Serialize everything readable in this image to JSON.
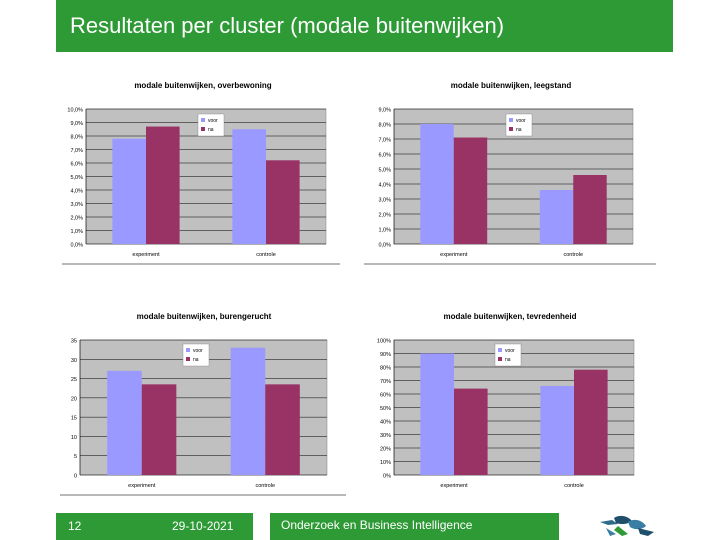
{
  "slide": {
    "title": "Resultaten per cluster (modale buitenwijken)",
    "page_number": "12",
    "date": "29-10-2021",
    "organization": "Onderzoek en Business Intelligence"
  },
  "colors": {
    "voor": "#9999ff",
    "na": "#993366",
    "plot_bg": "#c0c0c0",
    "brand": "#2e9a36"
  },
  "chart_data": [
    {
      "type": "bar",
      "title": "modale buitenwijken, overbewoning",
      "categories": [
        "experiment",
        "controle"
      ],
      "series": [
        {
          "name": "voor",
          "values": [
            7.8,
            8.5
          ]
        },
        {
          "name": "na",
          "values": [
            8.7,
            6.2
          ]
        }
      ],
      "ylim": [
        0,
        10
      ],
      "ticks": [
        "0,0%",
        "1,0%",
        "2,0%",
        "3,0%",
        "4,0%",
        "5,0%",
        "6,0%",
        "7,0%",
        "8,0%",
        "9,0%",
        "10,0%"
      ],
      "legend": "top-center"
    },
    {
      "type": "bar",
      "title": "modale buitenwijken, leegstand",
      "categories": [
        "experiment",
        "controle"
      ],
      "series": [
        {
          "name": "voor",
          "values": [
            8.0,
            3.6
          ]
        },
        {
          "name": "na",
          "values": [
            7.1,
            4.6
          ]
        }
      ],
      "ylim": [
        0,
        9
      ],
      "ticks": [
        "0,0%",
        "1,0%",
        "2,0%",
        "3,0%",
        "4,0%",
        "5,0%",
        "6,0%",
        "7,0%",
        "8,0%",
        "9,0%"
      ],
      "legend": "top-right"
    },
    {
      "type": "bar",
      "title": "modale buitenwijken, burengerucht",
      "categories": [
        "experiment",
        "controle"
      ],
      "series": [
        {
          "name": "voor",
          "values": [
            27,
            33
          ]
        },
        {
          "name": "na",
          "values": [
            23.5,
            23.5
          ]
        }
      ],
      "ylim": [
        0,
        35
      ],
      "ticks": [
        "0",
        "5",
        "10",
        "15",
        "20",
        "25",
        "30",
        "35"
      ],
      "legend": "top-center"
    },
    {
      "type": "bar",
      "title": "modale buitenwijken, tevredenheid",
      "categories": [
        "experiment",
        "controle"
      ],
      "series": [
        {
          "name": "voor",
          "values": [
            90,
            66
          ]
        },
        {
          "name": "na",
          "values": [
            64,
            78
          ]
        }
      ],
      "ylim": [
        0,
        100
      ],
      "ticks": [
        "0%",
        "10%",
        "20%",
        "30%",
        "40%",
        "50%",
        "60%",
        "70%",
        "80%",
        "90%",
        "100%"
      ],
      "legend": "top-right"
    }
  ]
}
